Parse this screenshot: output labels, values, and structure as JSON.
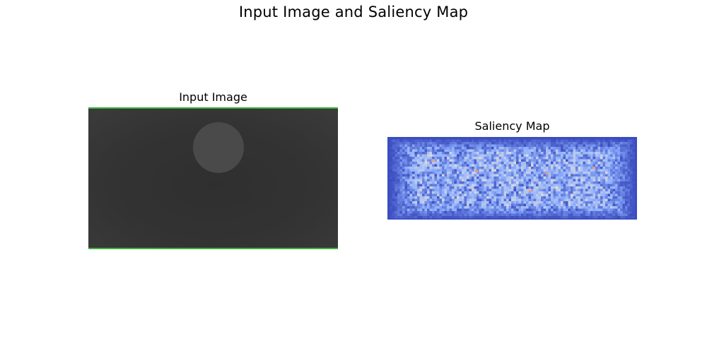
{
  "figure": {
    "title": "Input Image and Saliency Map"
  },
  "panels": {
    "input": {
      "title": "Input Image",
      "colors": {
        "background": "#333333",
        "blob": "#4a4a4a",
        "border_line": "#3ddc3d"
      }
    },
    "saliency": {
      "title": "Saliency Map",
      "colormap": "coolwarm",
      "colors": {
        "low": "#3b4cc0",
        "mid": "#8fb1fe",
        "high": "#dddddd",
        "hot": "#f4987a"
      }
    }
  }
}
